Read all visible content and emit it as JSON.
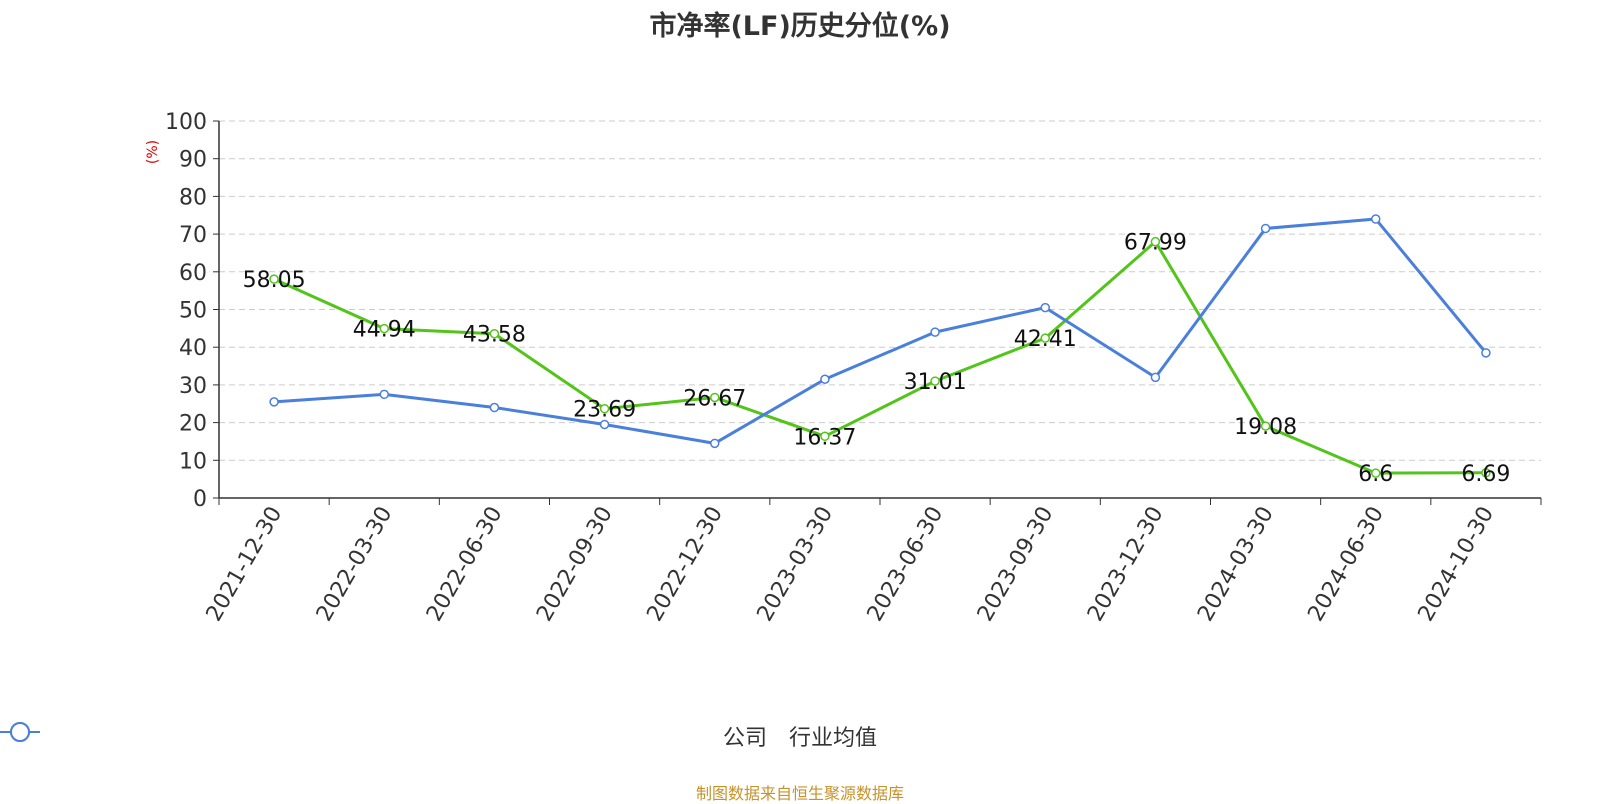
{
  "chart_data": {
    "type": "line",
    "title": "市净率(LF)历史分位(%)",
    "ylabel": "(%)",
    "ylim": [
      0,
      100
    ],
    "yticks": [
      0,
      10,
      20,
      30,
      40,
      50,
      60,
      70,
      80,
      90,
      100
    ],
    "grid": true,
    "legend_position": "bottom",
    "categories": [
      "2021-12-30",
      "2022-03-30",
      "2022-06-30",
      "2022-09-30",
      "2022-12-30",
      "2023-03-30",
      "2023-06-30",
      "2023-09-30",
      "2023-12-30",
      "2024-03-30",
      "2024-06-30",
      "2024-10-30"
    ],
    "series": [
      {
        "name": "公司",
        "color": "#52c41a",
        "values": [
          58.05,
          44.94,
          43.58,
          23.69,
          26.67,
          16.37,
          31.01,
          42.41,
          67.99,
          19.08,
          6.6,
          6.69
        ],
        "labels": [
          "58.05",
          "44.94",
          "43.58",
          "23.69",
          "26.67",
          "16.37",
          "31.01",
          "42.41",
          "67.99",
          "19.08",
          "6.6",
          "6.69"
        ]
      },
      {
        "name": "行业均值",
        "color": "#4a7fdb",
        "values": [
          25.5,
          27.5,
          24.0,
          19.5,
          14.5,
          31.5,
          44.0,
          50.5,
          32.0,
          71.5,
          74.0,
          38.5
        ]
      }
    ]
  },
  "footer": "制图数据来自恒生聚源数据库"
}
